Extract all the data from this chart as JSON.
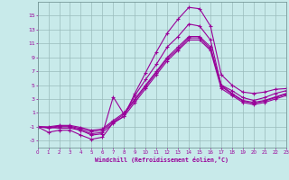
{
  "bg_color": "#c8eaea",
  "line_color": "#990099",
  "grid_color": "#99bbbb",
  "xlabel": "Windchill (Refroidissement éolien,°C)",
  "xlim": [
    0,
    23
  ],
  "ylim": [
    -4,
    17
  ],
  "xticks": [
    0,
    1,
    2,
    3,
    4,
    5,
    6,
    7,
    8,
    9,
    10,
    11,
    12,
    13,
    14,
    15,
    16,
    17,
    18,
    19,
    20,
    21,
    22,
    23
  ],
  "yticks": [
    -3,
    -1,
    1,
    3,
    5,
    7,
    9,
    11,
    13,
    15
  ],
  "curves": [
    {
      "x": [
        0,
        1,
        2,
        3,
        4,
        5,
        6,
        7,
        8,
        9,
        10,
        11,
        12,
        13,
        14,
        15,
        16,
        17,
        18,
        19,
        20,
        21,
        22,
        23
      ],
      "y": [
        -1.0,
        -1.8,
        -1.5,
        -1.5,
        -2.2,
        -2.8,
        -2.5,
        -0.4,
        0.5,
        3.8,
        6.8,
        9.8,
        12.5,
        14.5,
        16.2,
        16.0,
        13.5,
        6.5,
        5.0,
        4.0,
        3.8,
        4.0,
        4.4,
        4.5
      ]
    },
    {
      "x": [
        0,
        2,
        3,
        4,
        5,
        6,
        7,
        8,
        9,
        10,
        11,
        12,
        13,
        14,
        15,
        16,
        17,
        18,
        19,
        20,
        21,
        22,
        23
      ],
      "y": [
        -1.0,
        -1.2,
        -1.2,
        -1.5,
        -2.2,
        -2.0,
        3.3,
        0.8,
        3.5,
        5.8,
        8.0,
        10.5,
        12.0,
        13.8,
        13.5,
        11.5,
        5.0,
        4.2,
        3.2,
        2.8,
        3.2,
        3.8,
        4.2
      ]
    },
    {
      "x": [
        0,
        1,
        2,
        3,
        4,
        5,
        6,
        7,
        8,
        9,
        10,
        11,
        12,
        13,
        14,
        15,
        16,
        17,
        18,
        19,
        20,
        21,
        22,
        23
      ],
      "y": [
        -1.0,
        -1.2,
        -1.0,
        -1.0,
        -1.5,
        -2.0,
        -1.8,
        -0.5,
        0.5,
        2.5,
        4.5,
        6.5,
        8.5,
        10.0,
        11.5,
        11.5,
        10.0,
        4.5,
        3.5,
        2.5,
        2.2,
        2.5,
        3.0,
        3.5
      ]
    },
    {
      "x": [
        0,
        1,
        2,
        3,
        4,
        5,
        6,
        7,
        8,
        9,
        10,
        11,
        12,
        13,
        14,
        15,
        16,
        17,
        18,
        19,
        20,
        21,
        22,
        23
      ],
      "y": [
        -1.0,
        -1.1,
        -0.9,
        -0.9,
        -1.3,
        -1.7,
        -1.5,
        -0.3,
        0.8,
        2.8,
        4.8,
        6.8,
        8.8,
        10.2,
        11.8,
        11.8,
        10.2,
        4.8,
        3.7,
        2.7,
        2.4,
        2.7,
        3.2,
        3.7
      ]
    },
    {
      "x": [
        0,
        1,
        2,
        3,
        4,
        5,
        6,
        7,
        8,
        9,
        10,
        11,
        12,
        13,
        14,
        15,
        16,
        17,
        18,
        19,
        20,
        21,
        22,
        23
      ],
      "y": [
        -1.0,
        -1.0,
        -0.8,
        -0.8,
        -1.1,
        -1.5,
        -1.3,
        -0.1,
        1.0,
        3.0,
        5.0,
        7.0,
        9.0,
        10.5,
        12.0,
        12.0,
        10.5,
        5.0,
        3.8,
        2.8,
        2.5,
        2.8,
        3.3,
        3.8
      ]
    }
  ]
}
